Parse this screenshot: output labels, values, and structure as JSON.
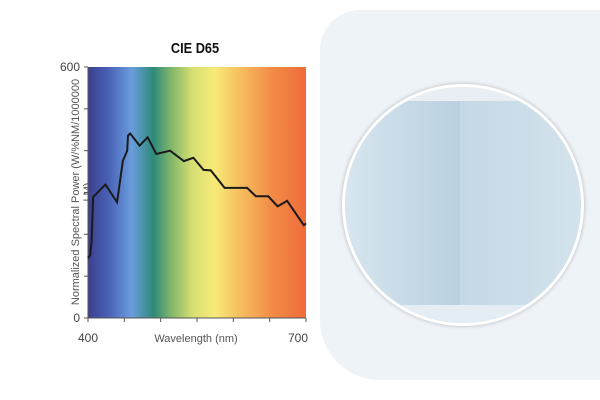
{
  "chart_data": {
    "type": "line",
    "title": "CIE D65",
    "xlabel": "Wavelength (nm)",
    "ylabel": "Normalized Spectral Power (W/%NM/1000000 LM)",
    "xlim": [
      400,
      700
    ],
    "ylim": [
      0,
      600
    ],
    "x_tick_labels": [
      "400",
      "700"
    ],
    "y_tick_labels": [
      "0",
      "600"
    ],
    "x_ticks": [
      400,
      450,
      500,
      550,
      600,
      650,
      700
    ],
    "y_ticks": [
      0,
      100,
      200,
      300,
      400,
      500,
      600
    ],
    "background": "visible spectrum gradient",
    "grid": false,
    "series": [
      {
        "color": "#1a1a1a",
        "x": [
          400,
          403,
          405,
          407,
          424,
          440,
          448,
          454,
          455,
          458,
          471,
          482,
          494,
          513,
          532,
          545,
          559,
          569,
          588,
          619,
          631,
          648,
          661,
          674,
          697,
          700
        ],
        "y": [
          143,
          150,
          186,
          289,
          319,
          277,
          376,
          400,
          436,
          441,
          412,
          432,
          392,
          400,
          375,
          383,
          354,
          353,
          311,
          311,
          291,
          291,
          267,
          280,
          222,
          226
        ]
      }
    ]
  },
  "image": {
    "description_icon": "white-room-photo"
  }
}
